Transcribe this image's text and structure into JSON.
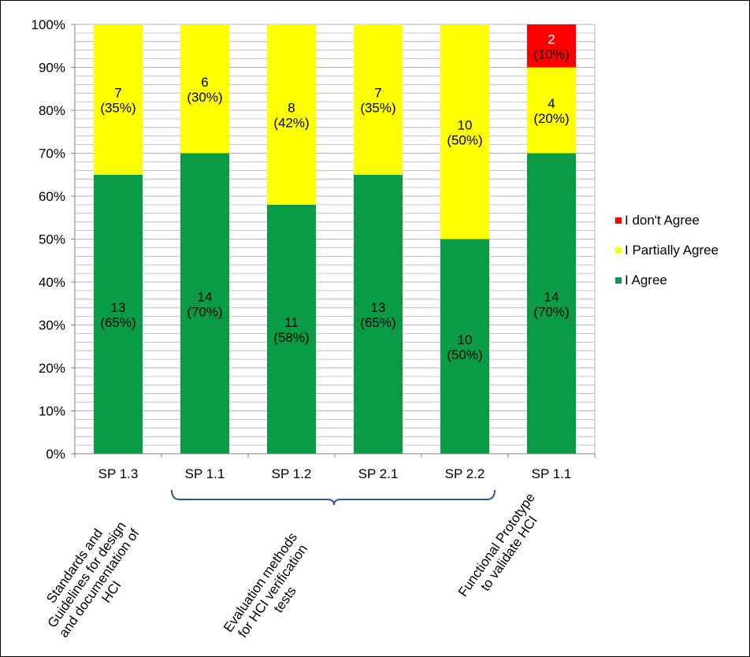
{
  "chart_data": {
    "type": "bar",
    "stacked": true,
    "categories": [
      "SP 1.3",
      "SP 1.1",
      "SP 1.2",
      "SP 2.1",
      "SP 2.2",
      "SP 1.1"
    ],
    "y_tick_labels": [
      "0%",
      "10%",
      "20%",
      "30%",
      "40%",
      "50%",
      "60%",
      "70%",
      "80%",
      "90%",
      "100%"
    ],
    "ylim": [
      0,
      100
    ],
    "grid": true,
    "legend_position": "right",
    "series": [
      {
        "name": "I Agree",
        "color": "#0a9b46",
        "values": [
          65,
          70,
          58,
          65,
          50,
          70
        ],
        "counts": [
          "13",
          "14",
          "11",
          "13",
          "10",
          "14"
        ],
        "percent_labels": [
          "(65%)",
          "(70%)",
          "(58%)",
          "(65%)",
          "(50%)",
          "(70%)"
        ]
      },
      {
        "name": "I Partially Agree",
        "color": "#ffff00",
        "values": [
          35,
          30,
          42,
          35,
          50,
          20
        ],
        "counts": [
          "7",
          "6",
          "8",
          "7",
          "10",
          "4"
        ],
        "percent_labels": [
          "(35%)",
          "(30%)",
          "(42%)",
          "(35%)",
          "(50%)",
          "(20%)"
        ]
      },
      {
        "name": "I don't Agree",
        "color": "#ff0000",
        "values": [
          0,
          0,
          0,
          0,
          0,
          10
        ],
        "counts": [
          "",
          "",
          "",
          "",
          "",
          "2"
        ],
        "percent_labels": [
          "",
          "",
          "",
          "",
          "",
          "(10%)"
        ]
      }
    ],
    "legend_order": [
      "I don't Agree",
      "I Partially Agree",
      "I Agree"
    ],
    "group_labels": [
      {
        "text": "Standards and Guidelines for design and documentation of HCI",
        "lines": [
          "Standards and",
          "Guidelines for design",
          "and documentation of",
          "HCI"
        ]
      },
      {
        "text": "Evaluation methods for HCI verification tests",
        "lines": [
          "Evaluation methods",
          "for HCI verification",
          "tests"
        ]
      },
      {
        "text": "Functional Prototype to validate HCI",
        "lines": [
          "Functional Prototype",
          "to validate HCI"
        ]
      }
    ],
    "bracket_color": "#2e5597",
    "grid_color": "#b5b5b5",
    "axis_color": "#808080"
  }
}
